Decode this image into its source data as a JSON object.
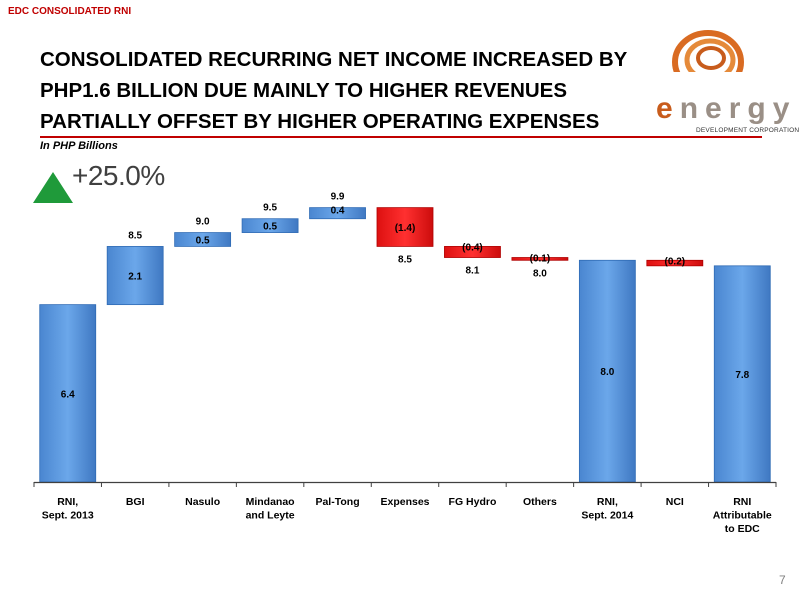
{
  "slide": {
    "tag": "EDC CONSOLIDATED RNI",
    "headline_lines": [
      "CONSOLIDATED RECURRING NET INCOME INCREASED BY",
      "PHP1.6 BILLION DUE MAINLY TO HIGHER REVENUES",
      "PARTIALLY OFFSET BY HIGHER OPERATING EXPENSES"
    ],
    "unit_note": "In PHP Billions",
    "growth": "+25.0%",
    "page_number": "7"
  },
  "logo": {
    "word": "energy",
    "word_first": "e",
    "word_rest": "nergy",
    "subtitle": "DEVELOPMENT CORPORATION"
  },
  "colors": {
    "accent_red": "#c00000",
    "increase_blue": "#5b9be0",
    "decrease_red": "#ee1c1c",
    "arrow_green": "#1f9a3a",
    "logo_orange": "#c85c1c"
  },
  "chart_data": {
    "type": "bar",
    "subtype": "waterfall",
    "unit": "In PHP Billions",
    "ylim": [
      0,
      10.5
    ],
    "grid": false,
    "legend": "none",
    "categories": [
      [
        "RNI,",
        "Sept. 2013"
      ],
      [
        "BGI"
      ],
      [
        "Nasulo"
      ],
      [
        "Mindanao",
        "and Leyte"
      ],
      [
        "Pal-Tong"
      ],
      [
        "Expenses"
      ],
      [
        "FG Hydro"
      ],
      [
        "Others"
      ],
      [
        "RNI,",
        "Sept. 2014"
      ],
      [
        "NCI"
      ],
      [
        "RNI",
        "Attributable",
        "to EDC"
      ]
    ],
    "bars": [
      {
        "kind": "total",
        "start": 0,
        "end": 6.4,
        "label": "6.4",
        "total_label": ""
      },
      {
        "kind": "increase",
        "start": 6.4,
        "end": 8.5,
        "label": "2.1",
        "total_label": "8.5"
      },
      {
        "kind": "increase",
        "start": 8.5,
        "end": 9.0,
        "label": "0.5",
        "total_label": "9.0"
      },
      {
        "kind": "increase",
        "start": 9.0,
        "end": 9.5,
        "label": "0.5",
        "total_label": "9.5"
      },
      {
        "kind": "increase",
        "start": 9.5,
        "end": 9.9,
        "label": "0.4",
        "total_label": "9.9"
      },
      {
        "kind": "decrease",
        "start": 9.9,
        "end": 8.5,
        "label": "(1.4)",
        "total_label": "8.5"
      },
      {
        "kind": "decrease",
        "start": 8.5,
        "end": 8.1,
        "label": "(0.4)",
        "total_label": "8.1"
      },
      {
        "kind": "decrease",
        "start": 8.1,
        "end": 8.0,
        "label": "(0.1)",
        "total_label": "8.0"
      },
      {
        "kind": "total",
        "start": 0,
        "end": 8.0,
        "label": "8.0",
        "total_label": ""
      },
      {
        "kind": "decrease",
        "start": 8.0,
        "end": 7.8,
        "label": "(0.2)",
        "total_label": ""
      },
      {
        "kind": "total",
        "start": 0,
        "end": 7.8,
        "label": "7.8",
        "total_label": ""
      }
    ]
  }
}
